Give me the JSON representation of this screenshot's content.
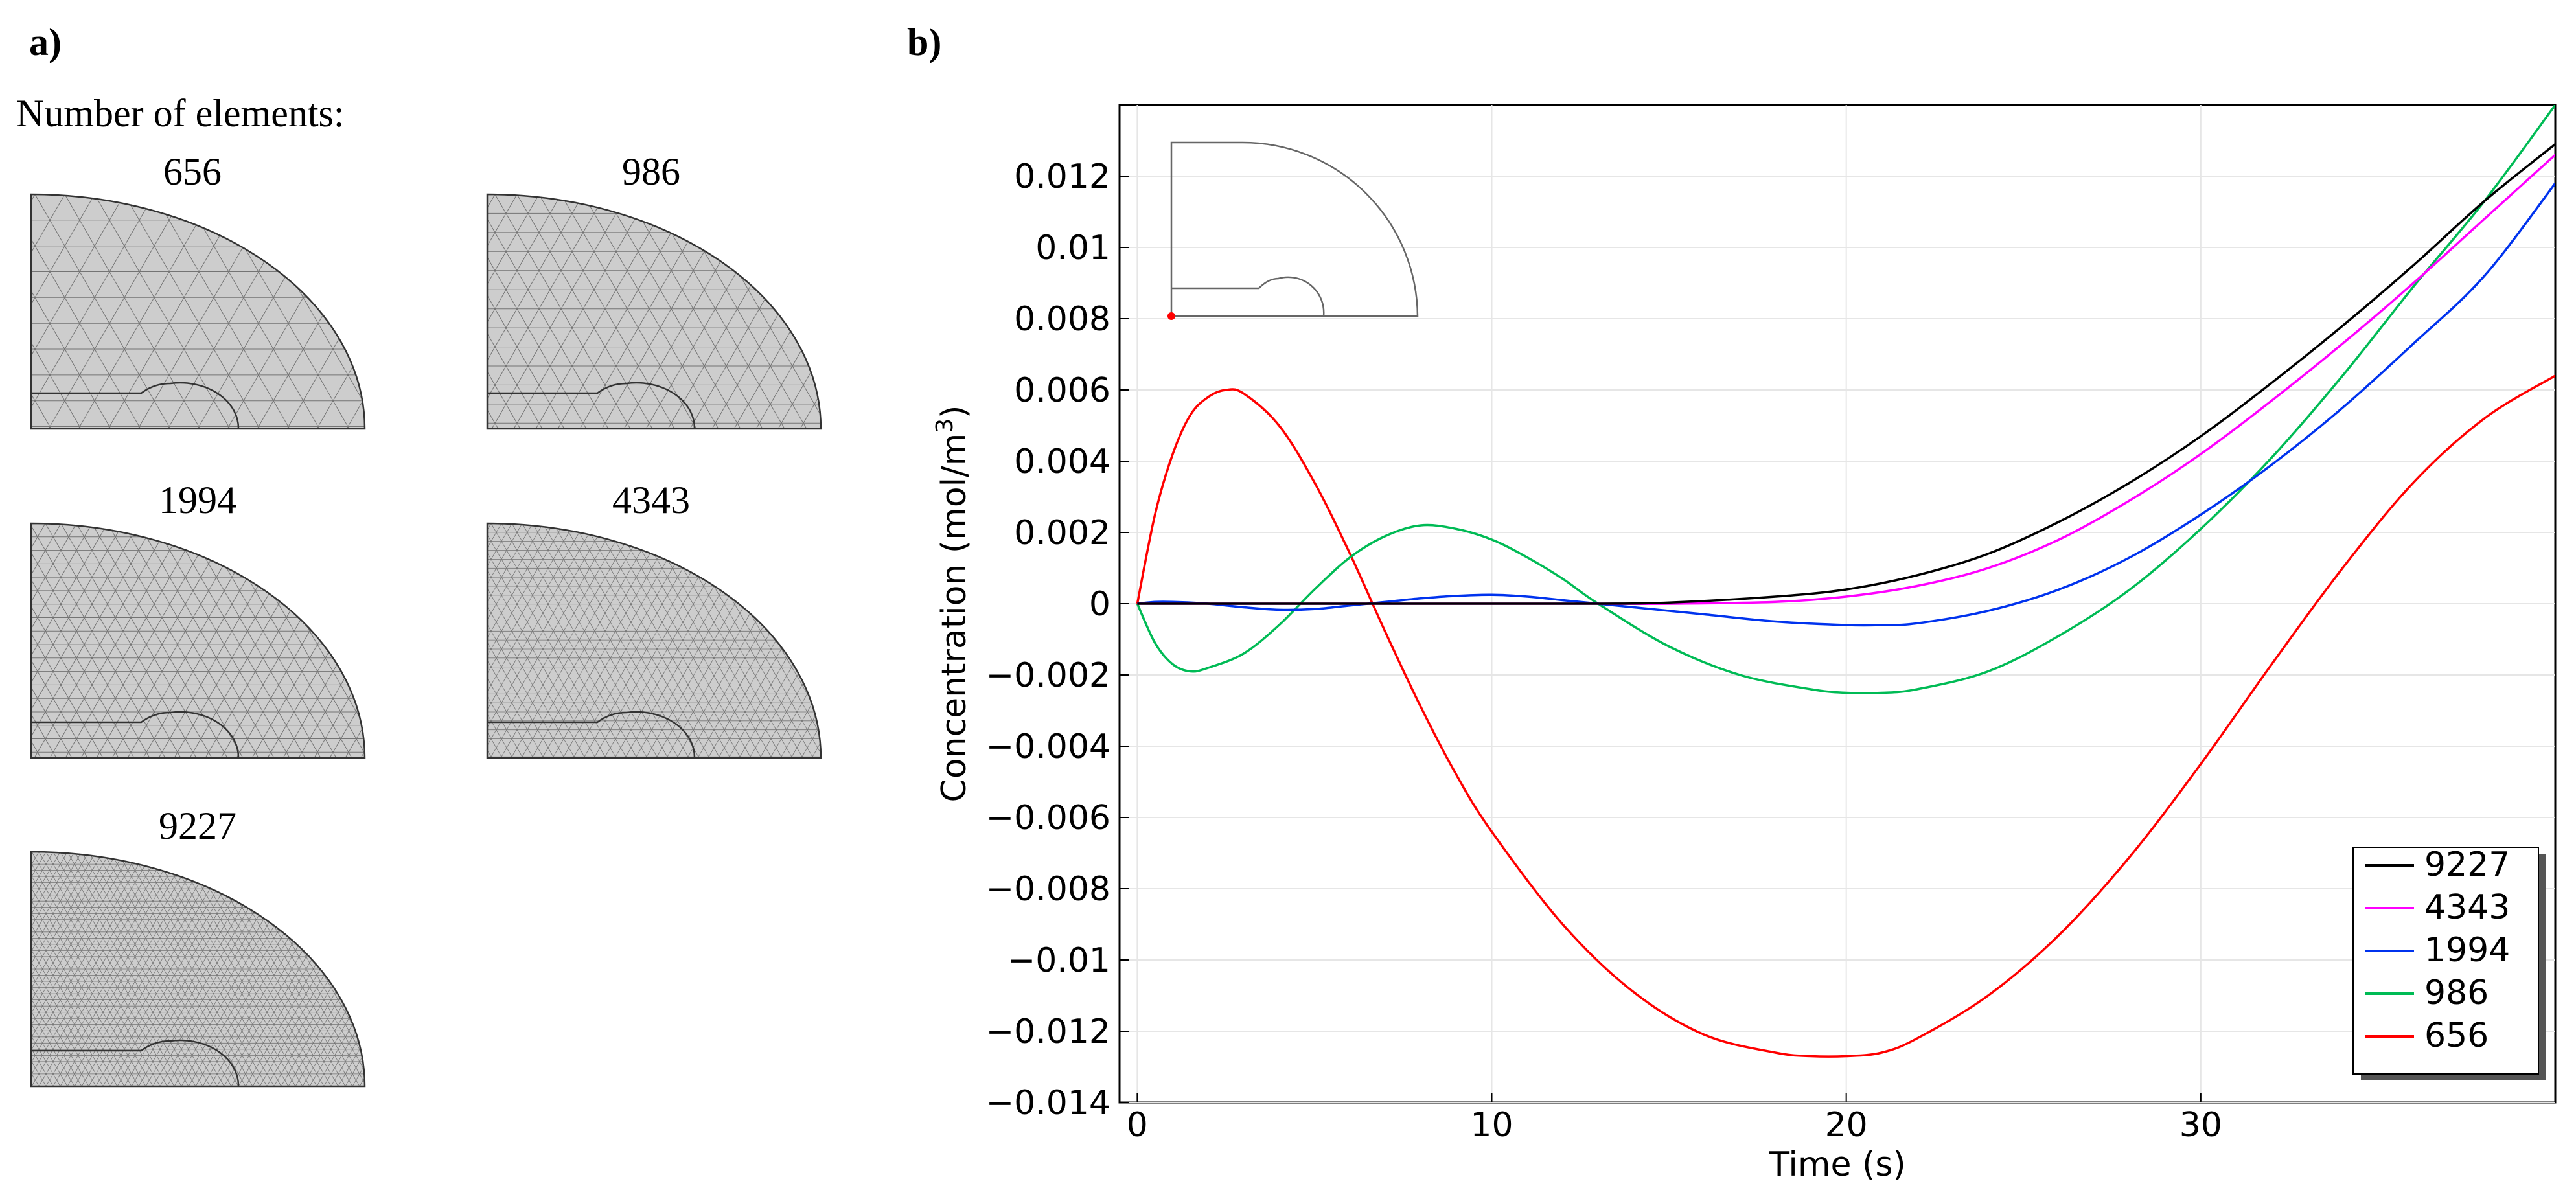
{
  "panel_a": {
    "label": "a)",
    "heading": "Number of elements:",
    "meshes": [
      {
        "label": "656",
        "density": 1
      },
      {
        "label": "986",
        "density": 2
      },
      {
        "label": "1994",
        "density": 3
      },
      {
        "label": "4343",
        "density": 4
      },
      {
        "label": "9227",
        "density": 5
      }
    ]
  },
  "panel_b": {
    "label": "b)"
  },
  "colors": {
    "9227": "#000000",
    "4343": "#ff00ff",
    "1994": "#0033ee",
    "986": "#00bb55",
    "656": "#ff0000"
  },
  "chart_data": {
    "type": "line",
    "title": "",
    "xlabel": "Time (s)",
    "ylabel": "Concentration (mol/m",
    "ylabel_superscript": "3",
    "ylabel_suffix": ")",
    "xlim": [
      -0.5,
      40
    ],
    "ylim": [
      -0.014,
      0.014
    ],
    "xticks": [
      0,
      10,
      20,
      30
    ],
    "yticks": [
      0.012,
      0.01,
      0.008,
      0.006,
      0.004,
      0.002,
      0,
      -0.002,
      -0.004,
      -0.006,
      -0.008,
      -0.01,
      -0.012,
      -0.014
    ],
    "ytick_labels": [
      "0.012",
      "0.01",
      "0.008",
      "0.006",
      "0.004",
      "0.002",
      "0",
      "−0.002",
      "−0.004",
      "−0.006",
      "−0.008",
      "−0.01",
      "−0.012",
      "−0.014"
    ],
    "legend_position": "bottom-right",
    "grid": true,
    "series": [
      {
        "name": "9227",
        "x": [
          0,
          5,
          10,
          13,
          15,
          18,
          20,
          22,
          24,
          26,
          28,
          30,
          32,
          34,
          36,
          38,
          40
        ],
        "y": [
          0,
          0,
          0,
          0,
          3e-05,
          0.0002,
          0.0004,
          0.0008,
          0.0014,
          0.0023,
          0.0034,
          0.0047,
          0.0062,
          0.0078,
          0.0095,
          0.0113,
          0.0129
        ]
      },
      {
        "name": "4343",
        "x": [
          0,
          5,
          10,
          13,
          15,
          18,
          20,
          22,
          24,
          26,
          28,
          30,
          32,
          34,
          36,
          38,
          40
        ],
        "y": [
          0,
          0,
          0,
          0,
          0,
          5e-05,
          0.0002,
          0.0005,
          0.001,
          0.0018,
          0.0029,
          0.0042,
          0.0057,
          0.0073,
          0.009,
          0.0108,
          0.0126
        ]
      },
      {
        "name": "1994",
        "x": [
          0,
          0.5,
          1,
          2,
          3,
          4,
          5,
          6,
          7,
          8,
          9,
          10,
          11,
          12,
          13,
          14,
          16,
          18,
          20,
          21,
          22,
          24,
          26,
          28,
          30,
          32,
          34,
          36,
          38,
          40
        ],
        "y": [
          0,
          5e-05,
          5e-05,
          0,
          -0.0001,
          -0.00017,
          -0.00015,
          -5e-05,
          5e-05,
          0.00015,
          0.00022,
          0.00025,
          0.0002,
          0.0001,
          0,
          -0.0001,
          -0.0003,
          -0.0005,
          -0.0006,
          -0.0006,
          -0.00055,
          -0.0002,
          0.0004,
          0.0013,
          0.0025,
          0.0039,
          0.0055,
          0.0073,
          0.0092,
          0.0118
        ]
      },
      {
        "name": "986",
        "x": [
          0,
          0.5,
          1,
          1.5,
          2,
          3,
          4,
          5,
          6,
          7,
          8,
          9,
          10,
          11,
          12,
          13,
          15,
          17,
          19,
          20,
          21,
          22,
          24,
          26,
          28,
          30,
          32,
          34,
          36,
          38,
          40
        ],
        "y": [
          0,
          -0.0011,
          -0.0017,
          -0.0019,
          -0.0018,
          -0.0014,
          -0.0006,
          0.0004,
          0.0013,
          0.0019,
          0.0022,
          0.0021,
          0.0018,
          0.0013,
          0.0007,
          0,
          -0.0012,
          -0.002,
          -0.0024,
          -0.0025,
          -0.0025,
          -0.0024,
          -0.0019,
          -0.0009,
          0.0004,
          0.0021,
          0.0041,
          0.0064,
          0.0089,
          0.0113,
          0.014
        ]
      },
      {
        "name": "656",
        "x": [
          0,
          0.5,
          1,
          1.5,
          2,
          2.5,
          3,
          4,
          5,
          6,
          7,
          8,
          9,
          10,
          12,
          14,
          16,
          18,
          19,
          20,
          21,
          22,
          24,
          26,
          28,
          30,
          32,
          34,
          36,
          38,
          40
        ],
        "y": [
          0,
          0.0025,
          0.0042,
          0.0053,
          0.0058,
          0.006,
          0.0059,
          0.005,
          0.0034,
          0.0014,
          -0.0008,
          -0.0029,
          -0.0048,
          -0.0064,
          -0.009,
          -0.0109,
          -0.0121,
          -0.0126,
          -0.0127,
          -0.0127,
          -0.0126,
          -0.0122,
          -0.011,
          -0.0093,
          -0.0071,
          -0.0045,
          -0.0017,
          0.001,
          0.0034,
          0.0052,
          0.0064
        ]
      }
    ],
    "legend_order": [
      "9227",
      "4343",
      "1994",
      "986",
      "656"
    ]
  }
}
